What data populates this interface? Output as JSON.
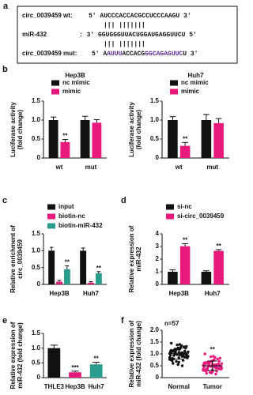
{
  "sequence_alignment": {
    "panel": "a",
    "rows": [
      {
        "label": "circ_0039459 wt:",
        "segments": [
          {
            "text": "5' AUCCCACCACGCCUCCCAAGU 3'"
          }
        ]
      },
      {
        "label": "miR-432",
        "segments": [
          {
            "text": ": 3' GGUGGGUUACUGGAUGAGGUUCU 5'"
          }
        ]
      },
      {
        "label": "circ_0039459 mut:",
        "segments": [
          {
            "text": "5' A"
          },
          {
            "text": "AUUU",
            "color": "#5b2d9c"
          },
          {
            "text": "ACCACG"
          },
          {
            "text": "GGCAGAGUUC",
            "color": "#5b2d9c"
          },
          {
            "text": "U 3'"
          }
        ]
      }
    ],
    "pairs": [
      "|||     |||||||",
      "|||     |||||||"
    ]
  },
  "chart_data": [
    {
      "type": "bar",
      "panel": "b",
      "title": "Hep3B",
      "ylabel": [
        "Luciferase activity",
        "(fold change)"
      ],
      "categories": [
        "wt",
        "mut"
      ],
      "legend": "top",
      "series": [
        {
          "name": "nc mimic",
          "color": "#111111",
          "values": [
            1.0,
            1.0
          ],
          "errors": [
            0.08,
            0.1
          ]
        },
        {
          "name": "mimic",
          "color": "#e8197d",
          "values": [
            0.42,
            0.93
          ],
          "errors": [
            0.07,
            0.08
          ],
          "significance": [
            "**",
            null
          ]
        }
      ],
      "ylim": [
        0,
        1.5
      ],
      "yticks": [
        0,
        {
          "value": 0.5,
          "label": "0.5"
        },
        {
          "value": 1,
          "label": "1.0"
        },
        {
          "value": 1.5,
          "label": "1.5"
        }
      ]
    },
    {
      "type": "bar",
      "title": "Huh7",
      "ylabel": [
        "Luciferase activity",
        "(fold change)"
      ],
      "categories": [
        "wt",
        "mut"
      ],
      "legend": "top",
      "series": [
        {
          "name": "nc mimic",
          "color": "#111111",
          "values": [
            1.0,
            1.0
          ],
          "errors": [
            0.09,
            0.15
          ]
        },
        {
          "name": "mimic",
          "color": "#e8197d",
          "values": [
            0.32,
            0.92
          ],
          "errors": [
            0.09,
            0.12
          ],
          "significance": [
            "**",
            null
          ]
        }
      ],
      "ylim": [
        0,
        1.5
      ],
      "yticks": [
        0,
        {
          "value": 0.5,
          "label": "0.5"
        },
        {
          "value": 1,
          "label": "1.0"
        },
        {
          "value": 1.5,
          "label": "1.5"
        }
      ]
    },
    {
      "type": "bar",
      "panel": "c",
      "ylabel": [
        "Relative enrichment of",
        "circ_0039459"
      ],
      "categories": [
        "Hep3B",
        "Huh7"
      ],
      "legend": "above",
      "series": [
        {
          "name": "input",
          "color": "#111111",
          "values": [
            1.0,
            1.0
          ],
          "errors": [
            0.1,
            0.08
          ]
        },
        {
          "name": "biotin-nc",
          "color": "#e8197d",
          "values": [
            0.08,
            0.05
          ],
          "errors": [
            0.04,
            0.03
          ]
        },
        {
          "name": "biotin-miR-432",
          "color": "#2a9d8f",
          "values": [
            0.45,
            0.33
          ],
          "errors": [
            0.1,
            0.05
          ],
          "significance": [
            "**",
            "**"
          ]
        }
      ],
      "ylim": [
        0,
        1.5
      ],
      "yticks": [
        0,
        {
          "value": 0.5,
          "label": "0.5"
        },
        {
          "value": 1,
          "label": "1.0"
        },
        {
          "value": 1.5,
          "label": "1.5"
        }
      ]
    },
    {
      "type": "bar",
      "panel": "d",
      "ylabel": [
        "Relative expression of",
        "miR-432"
      ],
      "categories": [
        "Hep3B",
        "Huh7"
      ],
      "legend": "above",
      "series": [
        {
          "name": "si-nc",
          "color": "#111111",
          "values": [
            1.0,
            1.0
          ],
          "errors": [
            0.15,
            0.08
          ]
        },
        {
          "name": "si-circ_0039459",
          "color": "#e8197d",
          "values": [
            3.02,
            2.65
          ],
          "errors": [
            0.2,
            0.1
          ],
          "significance": [
            "**",
            "**"
          ]
        }
      ],
      "ylim": [
        0,
        4
      ],
      "yticks": [
        0,
        1,
        2,
        3,
        4
      ]
    },
    {
      "type": "bar",
      "panel": "e",
      "ylabel": [
        "Relative expression of",
        "miR-432 (fold change)"
      ],
      "categories": [
        "THLE3",
        "Hep3B",
        "Huh7"
      ],
      "values": [
        1.0,
        0.18,
        0.45
      ],
      "errors": [
        0.1,
        0.04,
        0.07
      ],
      "colors": [
        "#111111",
        "#e8197d",
        "#2a9d8f"
      ],
      "significance": [
        null,
        "***",
        "**"
      ],
      "ylim": [
        0,
        1.5
      ],
      "yticks": [
        0,
        {
          "value": 0.5,
          "label": "0.5"
        },
        {
          "value": 1,
          "label": "1.0"
        },
        {
          "value": 1.5,
          "label": "1.5"
        }
      ]
    },
    {
      "type": "strip",
      "panel": "f",
      "annotation": "n=57",
      "ylabel": [
        "Relative expression of",
        "miR-432 (fold change)"
      ],
      "categories": [
        "Normal",
        "Tumor"
      ],
      "series": [
        {
          "color": "#111111",
          "mean": 1.01,
          "sd": 0.23,
          "values": [
            1.02,
            0.95,
            1.1,
            0.88,
            1.25,
            0.76,
            1.05,
            0.99,
            1.32,
            0.65,
            1.15,
            0.92,
            1.08,
            0.83,
            1.4,
            0.71,
            1.0,
            1.18,
            0.9,
            1.27,
            0.6,
            1.12,
            0.97,
            0.85,
            1.35,
            0.79,
            1.03,
            1.22,
            0.94,
            0.5,
            1.16,
            0.87,
            1.07,
            1.45,
            0.73,
            1.01,
            0.91,
            1.2,
            0.81,
            1.3,
            0.68,
            1.09,
            0.96,
            1.13,
            0.86,
            1.38,
            0.77,
            1.04,
            0.93,
            1.24,
            0.55,
            1.11,
            0.89,
            1.19,
            0.98,
            0.84,
            1.06
          ]
        },
        {
          "color": "#e8197d",
          "mean": 0.5,
          "sd": 0.2,
          "significance": "**",
          "values": [
            0.52,
            0.45,
            0.6,
            0.38,
            0.7,
            0.3,
            0.55,
            0.48,
            0.82,
            0.25,
            0.63,
            0.42,
            0.57,
            0.35,
            0.9,
            0.28,
            0.5,
            0.66,
            0.4,
            0.75,
            0.18,
            0.58,
            0.47,
            0.36,
            0.85,
            0.32,
            0.53,
            0.68,
            0.44,
            0.15,
            0.61,
            0.39,
            0.56,
            1.0,
            0.27,
            0.51,
            0.43,
            0.72,
            0.34,
            0.78,
            0.22,
            0.59,
            0.46,
            0.64,
            0.37,
            0.88,
            0.31,
            0.54,
            0.41,
            0.69,
            0.2,
            0.62,
            0.4,
            0.67,
            0.49,
            0.33,
            0.57
          ]
        }
      ],
      "ylim": [
        0,
        2
      ],
      "yticks": [
        0,
        {
          "value": 0.5,
          "label": "0.5"
        },
        {
          "value": 1,
          "label": "1.0"
        },
        {
          "value": 1.5,
          "label": "1.5"
        },
        {
          "value": 2,
          "label": "2.0"
        }
      ]
    }
  ]
}
